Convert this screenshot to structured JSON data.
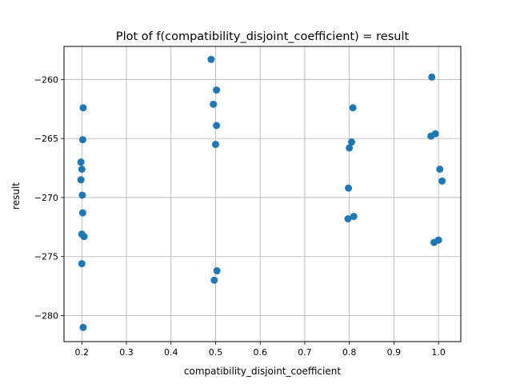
{
  "chart_data": {
    "type": "scatter",
    "title": "Plot of f(compatibility_disjoint_coefficient) = result",
    "xlabel": "compatibility_disjoint_coefficient",
    "ylabel": "result",
    "xlim": [
      0.16,
      1.05
    ],
    "ylim": [
      -282.2,
      -257.2
    ],
    "xticks": [
      0.2,
      0.3,
      0.4,
      0.5,
      0.6,
      0.7,
      0.8,
      0.9,
      1.0
    ],
    "xtick_labels": [
      "0.2",
      "0.3",
      "0.4",
      "0.5",
      "0.6",
      "0.7",
      "0.8",
      "0.9",
      "1.0"
    ],
    "yticks": [
      -280,
      -275,
      -270,
      -265,
      -260
    ],
    "ytick_labels": [
      "−280",
      "−275",
      "−270",
      "−265",
      "−260"
    ],
    "grid": true,
    "marker_color": "#1f77b4",
    "points": [
      {
        "x": 0.203,
        "y": -262.4
      },
      {
        "x": 0.202,
        "y": -265.1
      },
      {
        "x": 0.198,
        "y": -267.0
      },
      {
        "x": 0.2,
        "y": -267.6
      },
      {
        "x": 0.198,
        "y": -268.5
      },
      {
        "x": 0.201,
        "y": -269.8
      },
      {
        "x": 0.202,
        "y": -271.3
      },
      {
        "x": 0.2,
        "y": -273.1
      },
      {
        "x": 0.205,
        "y": -273.3
      },
      {
        "x": 0.2,
        "y": -275.6
      },
      {
        "x": 0.203,
        "y": -281.0
      },
      {
        "x": 0.49,
        "y": -258.3
      },
      {
        "x": 0.502,
        "y": -260.9
      },
      {
        "x": 0.495,
        "y": -262.1
      },
      {
        "x": 0.502,
        "y": -263.9
      },
      {
        "x": 0.5,
        "y": -265.5
      },
      {
        "x": 0.503,
        "y": -276.2
      },
      {
        "x": 0.497,
        "y": -277.0
      },
      {
        "x": 0.808,
        "y": -262.4
      },
      {
        "x": 0.805,
        "y": -265.3
      },
      {
        "x": 0.8,
        "y": -265.8
      },
      {
        "x": 0.798,
        "y": -269.2
      },
      {
        "x": 0.797,
        "y": -271.8
      },
      {
        "x": 0.81,
        "y": -271.6
      },
      {
        "x": 0.985,
        "y": -259.8
      },
      {
        "x": 0.993,
        "y": -264.6
      },
      {
        "x": 0.983,
        "y": -264.8
      },
      {
        "x": 1.003,
        "y": -267.6
      },
      {
        "x": 1.008,
        "y": -268.6
      },
      {
        "x": 0.99,
        "y": -273.8
      },
      {
        "x": 1.0,
        "y": -273.6
      }
    ]
  }
}
